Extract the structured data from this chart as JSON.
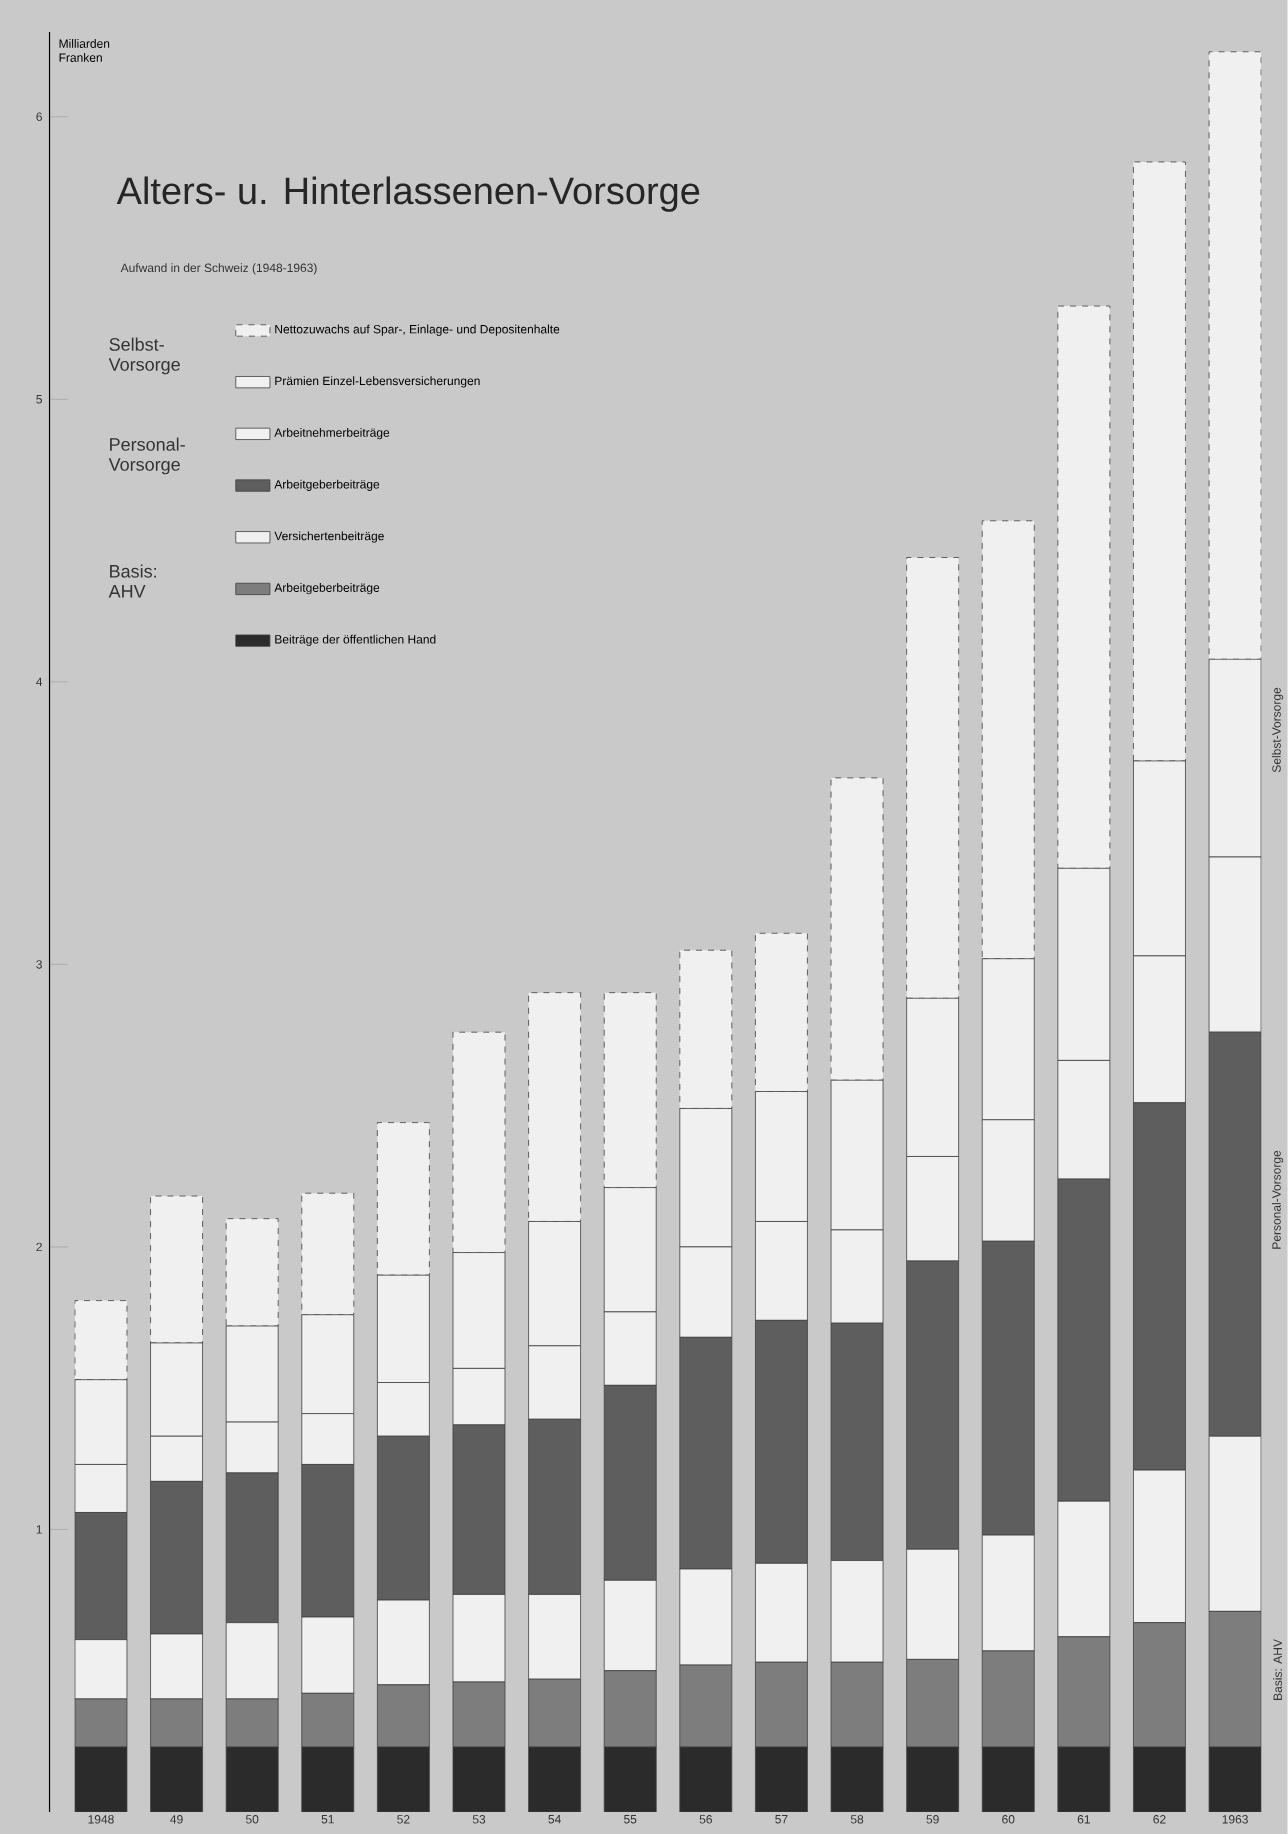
{
  "chart_data": {
    "type": "bar",
    "stacked": true,
    "title": "Alters- u. Hinterlassenen-Vorsorge",
    "subtitle": "Aufwand in der Schweiz (1948-1963)",
    "ylabel": "Milliarden Franken",
    "categories": [
      "1948",
      "49",
      "50",
      "51",
      "52",
      "53",
      "54",
      "55",
      "56",
      "57",
      "58",
      "59",
      "60",
      "61",
      "62",
      "1963"
    ],
    "ylim": [
      0,
      6.3
    ],
    "yticks": [
      1,
      2,
      3,
      4,
      5,
      6
    ],
    "legend": "top left",
    "series": [
      {
        "name": "Beiträge der öffentlichen Hand",
        "color": "#2b2b2b",
        "values": [
          0.23,
          0.23,
          0.23,
          0.23,
          0.23,
          0.23,
          0.23,
          0.23,
          0.23,
          0.23,
          0.23,
          0.23,
          0.23,
          0.23,
          0.23,
          0.23
        ]
      },
      {
        "name": "Arbeitgeberbeiträge",
        "color": "#7d7d7d",
        "values": [
          0.17,
          0.17,
          0.17,
          0.19,
          0.22,
          0.23,
          0.24,
          0.27,
          0.29,
          0.3,
          0.3,
          0.31,
          0.34,
          0.39,
          0.44,
          0.48
        ]
      },
      {
        "name": "Versichertenbeiträge",
        "color": "#f0f0f0",
        "values": [
          0.21,
          0.23,
          0.27,
          0.27,
          0.3,
          0.31,
          0.3,
          0.32,
          0.34,
          0.35,
          0.36,
          0.39,
          0.41,
          0.48,
          0.54,
          0.62
        ]
      },
      {
        "name": "Arbeitgeberbeiträge",
        "color": "#5e5e5e",
        "values": [
          0.45,
          0.54,
          0.53,
          0.54,
          0.58,
          0.6,
          0.62,
          0.69,
          0.82,
          0.86,
          0.84,
          1.02,
          1.04,
          1.14,
          1.3,
          1.43
        ]
      },
      {
        "name": "Arbeitnehmerbeiträge",
        "color": "#f0f0f0",
        "values": [
          0.17,
          0.16,
          0.18,
          0.18,
          0.19,
          0.2,
          0.26,
          0.26,
          0.32,
          0.35,
          0.33,
          0.37,
          0.43,
          0.42,
          0.52,
          0.62
        ]
      },
      {
        "name": "Prämien Einzel-Lebensversicherungen",
        "color": "#f0f0f0",
        "values": [
          0.3,
          0.33,
          0.34,
          0.35,
          0.38,
          0.41,
          0.44,
          0.44,
          0.49,
          0.46,
          0.53,
          0.56,
          0.57,
          0.68,
          0.69,
          0.7
        ]
      },
      {
        "name": "Nettozuwachs auf Spar-, Einlage- und Depositenhalte",
        "color": "#f0f0f0",
        "line_style": "dashed",
        "values": [
          0.28,
          0.52,
          0.38,
          0.43,
          0.54,
          0.78,
          0.81,
          0.69,
          0.56,
          0.56,
          1.07,
          1.56,
          1.55,
          1.99,
          2.12,
          2.15
        ]
      }
    ],
    "annotations": [
      "Selbst-Vorsorge",
      "Personal-Vorsorge",
      "Basis: AHV",
      "Selbst-Vorsorge",
      "Personal-Vorsorge",
      "Basis: AHV"
    ]
  }
}
